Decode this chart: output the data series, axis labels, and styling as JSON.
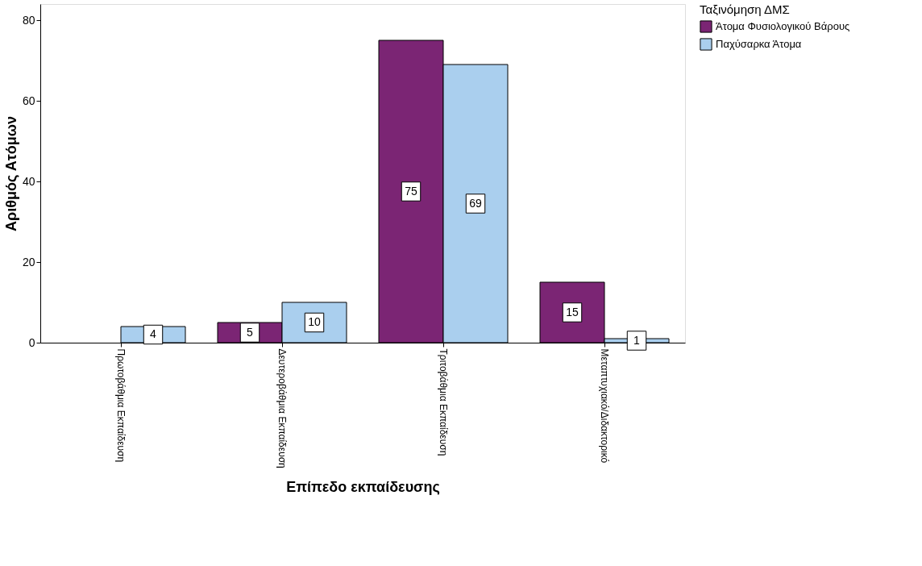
{
  "chart_data": {
    "type": "bar",
    "xlabel": "Επίπεδο εκπαίδευσης",
    "ylabel": "Αριθμός Ατόμων",
    "legend_title": "Ταξινόμηση ΔΜΣ",
    "legend": "top right",
    "grid": false,
    "data_labels": true,
    "categories": [
      "Πρωτοβάθμια Εκπαίδευση",
      "Δευτεροβάθμια Εκπαίδευση",
      "Τριτοβάθμια Εκπαίδευση",
      "Μεταπτυχιακό/Διδακτορικό"
    ],
    "series": [
      {
        "name": "Άτομα Φυσιολογικού Βάρους",
        "color": "#7b2574",
        "values": [
          null,
          5,
          75,
          15
        ]
      },
      {
        "name": "Παχύσαρκα Άτομα",
        "color": "#aacfee",
        "values": [
          4,
          10,
          69,
          1
        ]
      }
    ],
    "ylim": [
      0,
      84
    ],
    "yticks": [
      0,
      20,
      40,
      60,
      80
    ]
  }
}
